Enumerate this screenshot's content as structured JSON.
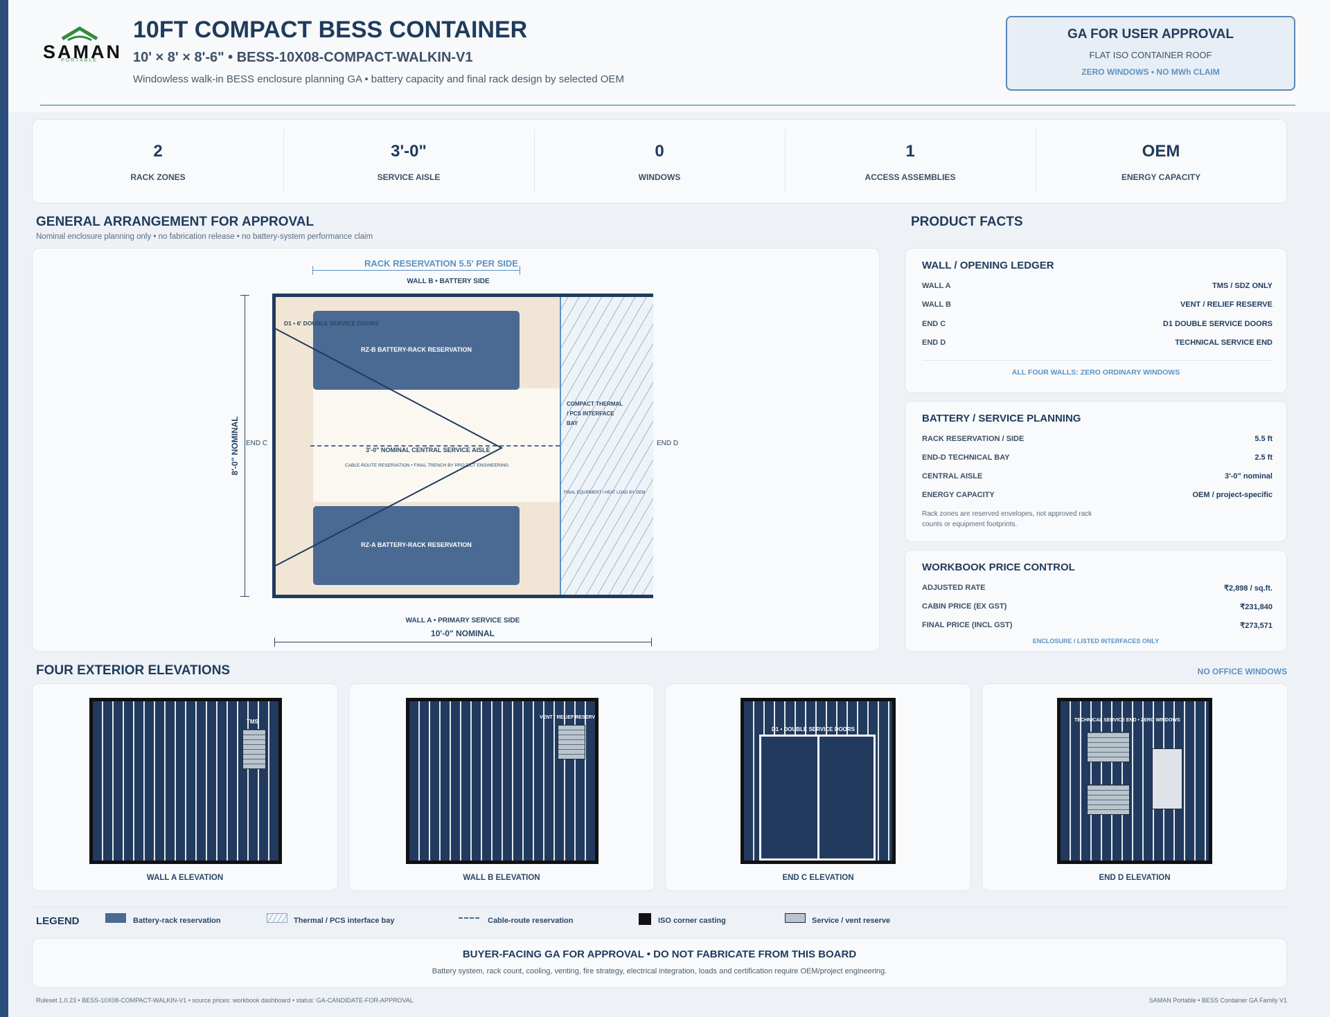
{
  "brand": {
    "name": "SAMAN",
    "sub": "PORTABLE",
    "brand_color": "#2e8b3e"
  },
  "header": {
    "title": "10FT COMPACT BESS CONTAINER",
    "subtitle": "10' × 8' × 8'-6\" • BESS-10X08-COMPACT-WALKIN-V1",
    "description": "Windowless walk-in BESS enclosure planning GA • battery capacity and final rack design by selected OEM"
  },
  "approval": {
    "title": "GA FOR USER APPROVAL",
    "line1": "FLAT ISO CONTAINER ROOF",
    "line2": "ZERO WINDOWS • NO MWh CLAIM"
  },
  "stats": [
    {
      "value": "2",
      "label": "RACK ZONES"
    },
    {
      "value": "3'-0\"",
      "label": "SERVICE AISLE"
    },
    {
      "value": "0",
      "label": "WINDOWS"
    },
    {
      "value": "1",
      "label": "ACCESS ASSEMBLIES"
    },
    {
      "value": "OEM",
      "label": "ENERGY CAPACITY"
    }
  ],
  "ga": {
    "title": "GENERAL ARRANGEMENT FOR APPROVAL",
    "note": "Nominal enclosure planning only • no fabrication release • no battery-system performance claim",
    "rack_reservation_dim": "RACK RESERVATION 5.5' PER SIDE",
    "wall_b": "WALL B • BATTERY SIDE",
    "wall_a": "WALL A • PRIMARY SERVICE SIDE",
    "length_dim": "10'-0\" NOMINAL",
    "width_dim": "8'-0\" NOMINAL",
    "end_c": "END C",
    "end_d": "END D",
    "door": "D1 • 6' DOUBLE SERVICE DOORS",
    "rack_b": "RZ-B BATTERY-RACK RESERVATION",
    "rack_a": "RZ-A BATTERY-RACK RESERVATION",
    "aisle": "3'-0\" NOMINAL CENTRAL SERVICE AISLE",
    "cable": "CABLE-ROUTE RESERVATION • FINAL TRENCH BY PROJECT ENGINEERING",
    "bay_lines": [
      "COMPACT THERMAL",
      "/ PCS INTERFACE",
      "BAY"
    ],
    "bay_note": "FINAL EQUIPMENT / HEAT LOAD BY OEM"
  },
  "product_facts": {
    "title": "PRODUCT FACTS",
    "wall_ledger": {
      "title": "WALL / OPENING LEDGER",
      "rows": [
        {
          "k": "WALL A",
          "v": "TMS / SDZ ONLY"
        },
        {
          "k": "WALL B",
          "v": "VENT / RELIEF RESERVE"
        },
        {
          "k": "END C",
          "v": "D1 DOUBLE SERVICE DOORS"
        },
        {
          "k": "END D",
          "v": "TECHNICAL SERVICE END"
        }
      ],
      "footer": "ALL FOUR WALLS: ZERO ORDINARY WINDOWS"
    },
    "battery": {
      "title": "BATTERY / SERVICE PLANNING",
      "rows": [
        {
          "k": "RACK RESERVATION / SIDE",
          "v": "5.5 ft"
        },
        {
          "k": "END-D TECHNICAL BAY",
          "v": "2.5 ft"
        },
        {
          "k": "CENTRAL AISLE",
          "v": "3'-0\" nominal"
        },
        {
          "k": "ENERGY CAPACITY",
          "v": "OEM / project-specific"
        }
      ],
      "note1": "Rack zones are reserved envelopes, not approved rack",
      "note2": "counts or equipment footprints."
    },
    "price": {
      "title": "WORKBOOK PRICE CONTROL",
      "rows": [
        {
          "k": "ADJUSTED RATE",
          "v": "₹2,898 / sq.ft."
        },
        {
          "k": "CABIN PRICE (EX GST)",
          "v": "₹231,840"
        },
        {
          "k": "FINAL PRICE (INCL GST)",
          "v": "₹273,571"
        }
      ],
      "footer": "ENCLOSURE / LISTED INTERFACES ONLY"
    }
  },
  "elevations": {
    "title": "FOUR EXTERIOR ELEVATIONS",
    "badge": "NO OFFICE WINDOWS",
    "wall_a": "WALL A ELEVATION",
    "wall_a_tag": "TMS",
    "wall_b": "WALL B ELEVATION",
    "wall_b_tag": "VENT / RELIEF RESERV",
    "end_c": "END C ELEVATION",
    "end_c_tag": "D1 • DOUBLE SERVICE DOORS",
    "end_d": "END D ELEVATION",
    "end_d_tag": "TECHNICAL SERVICE END • ZERO WINDOWS"
  },
  "legend": {
    "title": "LEGEND",
    "battery": "Battery-rack reservation",
    "thermal": "Thermal / PCS interface bay",
    "cable": "Cable-route reservation",
    "corner": "ISO corner casting",
    "service": "Service / vent reserve"
  },
  "notice": {
    "title": "BUYER-FACING GA FOR APPROVAL • DO NOT FABRICATE FROM THIS BOARD",
    "sub": "Battery system, rack count, cooling, venting, fire strategy, electrical integration, loads and certification require OEM/project engineering."
  },
  "footer": {
    "ruleset": "Ruleset 1.0.23 • BESS-10X08-COMPACT-WALKIN-V1 • source prices: workbook dashboard • status: GA-CANDIDATE-FOR-APPROVAL",
    "family": "SAMAN Portable • BESS Container GA Family V1"
  },
  "colors": {
    "navy": "#1f3b5c",
    "rack": "#4a6a93",
    "accent": "#5d92c1",
    "container": "#223a5e"
  }
}
